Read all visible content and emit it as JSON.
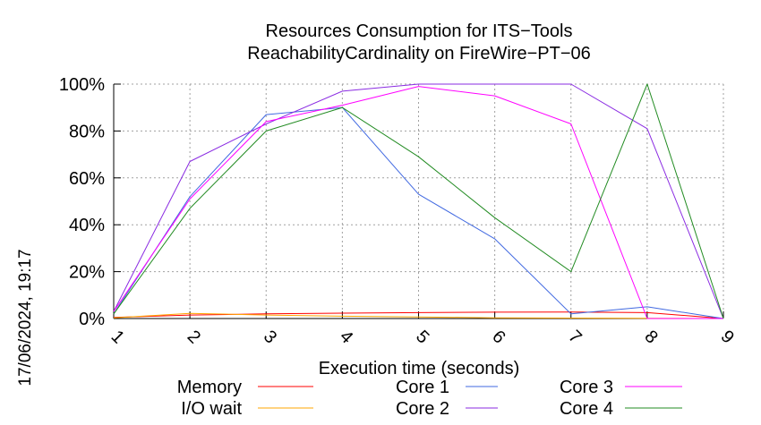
{
  "timestamp": "17/06/2024, 19:17",
  "chart_data": {
    "type": "line",
    "title": "Resources Consumption for ITS−Tools",
    "subtitle": "ReachabilityCardinality on FireWire−PT−06",
    "xlabel": "Execution time (seconds)",
    "ylabel": "",
    "x": [
      1,
      2,
      3,
      4,
      5,
      6,
      7,
      8,
      9
    ],
    "xlim": [
      1,
      9
    ],
    "ylim": [
      0,
      100
    ],
    "x_ticks": [
      "1",
      "2",
      "3",
      "4",
      "5",
      "6",
      "7",
      "8",
      "9"
    ],
    "y_ticks": [
      {
        "value": 0,
        "label": "0%"
      },
      {
        "value": 20,
        "label": "20%"
      },
      {
        "value": 40,
        "label": "40%"
      },
      {
        "value": 60,
        "label": "60%"
      },
      {
        "value": 80,
        "label": "80%"
      },
      {
        "value": 100,
        "label": "100%"
      }
    ],
    "grid": true,
    "legend_position": "bottom",
    "series": [
      {
        "name": "Memory",
        "color": "#ff0000",
        "values": [
          0.5,
          1.5,
          2,
          2.3,
          2.5,
          2.7,
          2.8,
          2.5,
          0
        ]
      },
      {
        "name": "I/O wait",
        "color": "#ffa500",
        "values": [
          0.3,
          2.2,
          1.5,
          1,
          0.7,
          0.3,
          0.2,
          0.1,
          0
        ]
      },
      {
        "name": "Core 1",
        "color": "#4169e1",
        "values": [
          2,
          52,
          87,
          90,
          53,
          34,
          2,
          5,
          0
        ]
      },
      {
        "name": "Core 2",
        "color": "#8a2be2",
        "values": [
          3,
          67,
          83,
          97,
          100,
          100,
          100,
          81,
          0
        ]
      },
      {
        "name": "Core 3",
        "color": "#ff00ff",
        "values": [
          3,
          51,
          84,
          91,
          99,
          95,
          83,
          0,
          0
        ]
      },
      {
        "name": "Core 4",
        "color": "#228b22",
        "values": [
          2,
          47,
          80,
          90,
          69,
          43,
          20,
          100,
          0
        ]
      }
    ]
  }
}
